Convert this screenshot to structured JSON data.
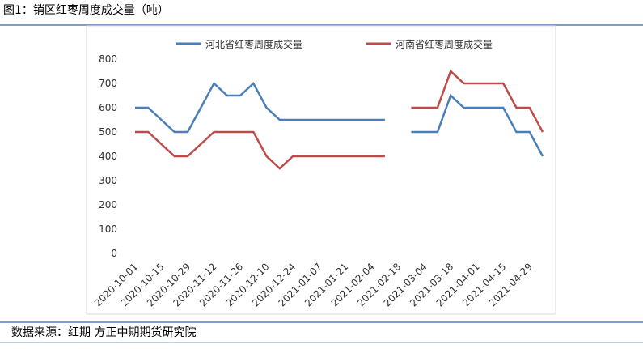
{
  "header": {
    "title": "图1：销区红枣周度成交量（吨）"
  },
  "chart_data": {
    "type": "line",
    "categories": [
      "2020-10-01",
      null,
      "2020-10-15",
      null,
      "2020-10-29",
      null,
      "2020-11-12",
      null,
      "2020-11-26",
      null,
      "2020-12-10",
      null,
      "2020-12-24",
      null,
      "2021-01-07",
      null,
      "2021-01-21",
      null,
      "2021-02-04",
      null,
      "2021-02-18",
      null,
      "2021-03-04",
      null,
      "2021-03-18",
      null,
      "2021-04-01",
      null,
      "2021-04-15",
      null,
      "2021-04-29",
      null
    ],
    "series": [
      {
        "name": "河北省红枣周度成交量",
        "color": "#4a7ebb",
        "values": [
          600,
          600,
          550,
          500,
          500,
          600,
          700,
          650,
          650,
          700,
          600,
          550,
          550,
          550,
          550,
          550,
          550,
          550,
          550,
          550,
          null,
          500,
          500,
          500,
          650,
          600,
          600,
          600,
          600,
          500,
          500,
          400
        ]
      },
      {
        "name": "河南省红枣周度成交量",
        "color": "#be4b48",
        "values": [
          500,
          500,
          450,
          400,
          400,
          450,
          500,
          500,
          500,
          500,
          400,
          350,
          400,
          400,
          400,
          400,
          400,
          400,
          400,
          400,
          null,
          600,
          600,
          600,
          750,
          700,
          700,
          700,
          700,
          600,
          600,
          500
        ]
      }
    ],
    "ylim": [
      0,
      800
    ],
    "yticks": [
      0,
      100,
      200,
      300,
      400,
      500,
      600,
      700,
      800
    ],
    "grid": false,
    "legend": "top"
  },
  "footer": {
    "source": "数据来源：红期 方正中期期货研究院"
  }
}
